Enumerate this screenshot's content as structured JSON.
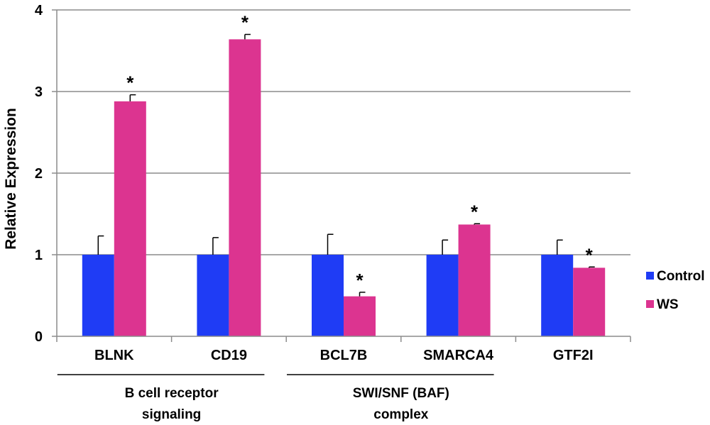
{
  "chart_data": {
    "type": "bar",
    "title": "",
    "xlabel": "",
    "ylabel": "Relative Expression",
    "ylim": [
      0,
      4
    ],
    "yticks": [
      "0",
      "1",
      "2",
      "3",
      "4"
    ],
    "grid": true,
    "legend_position": "right",
    "categories": [
      "BLNK",
      "CD19",
      "BCL7B",
      "SMARCA4",
      "GTF2I"
    ],
    "series": [
      {
        "name": "Control",
        "color": "#1f3cf5",
        "values": [
          1.0,
          1.0,
          1.0,
          1.0,
          1.0
        ],
        "errors": [
          0.23,
          0.21,
          0.25,
          0.18,
          0.18
        ],
        "significant": [
          false,
          false,
          false,
          false,
          false
        ]
      },
      {
        "name": "WS",
        "color": "#dc3490",
        "values": [
          2.88,
          3.64,
          0.49,
          1.37,
          0.84
        ],
        "errors": [
          0.08,
          0.06,
          0.05,
          0.01,
          0.01
        ],
        "significant": [
          true,
          true,
          true,
          true,
          true
        ]
      }
    ],
    "significance_marker": "*",
    "groups": [
      {
        "label_lines": [
          "B cell receptor",
          "signaling"
        ],
        "categories": [
          "BLNK",
          "CD19"
        ]
      },
      {
        "label_lines": [
          "SWI/SNF (BAF)",
          "complex"
        ],
        "categories": [
          "BCL7B",
          "SMARCA4"
        ]
      }
    ]
  }
}
